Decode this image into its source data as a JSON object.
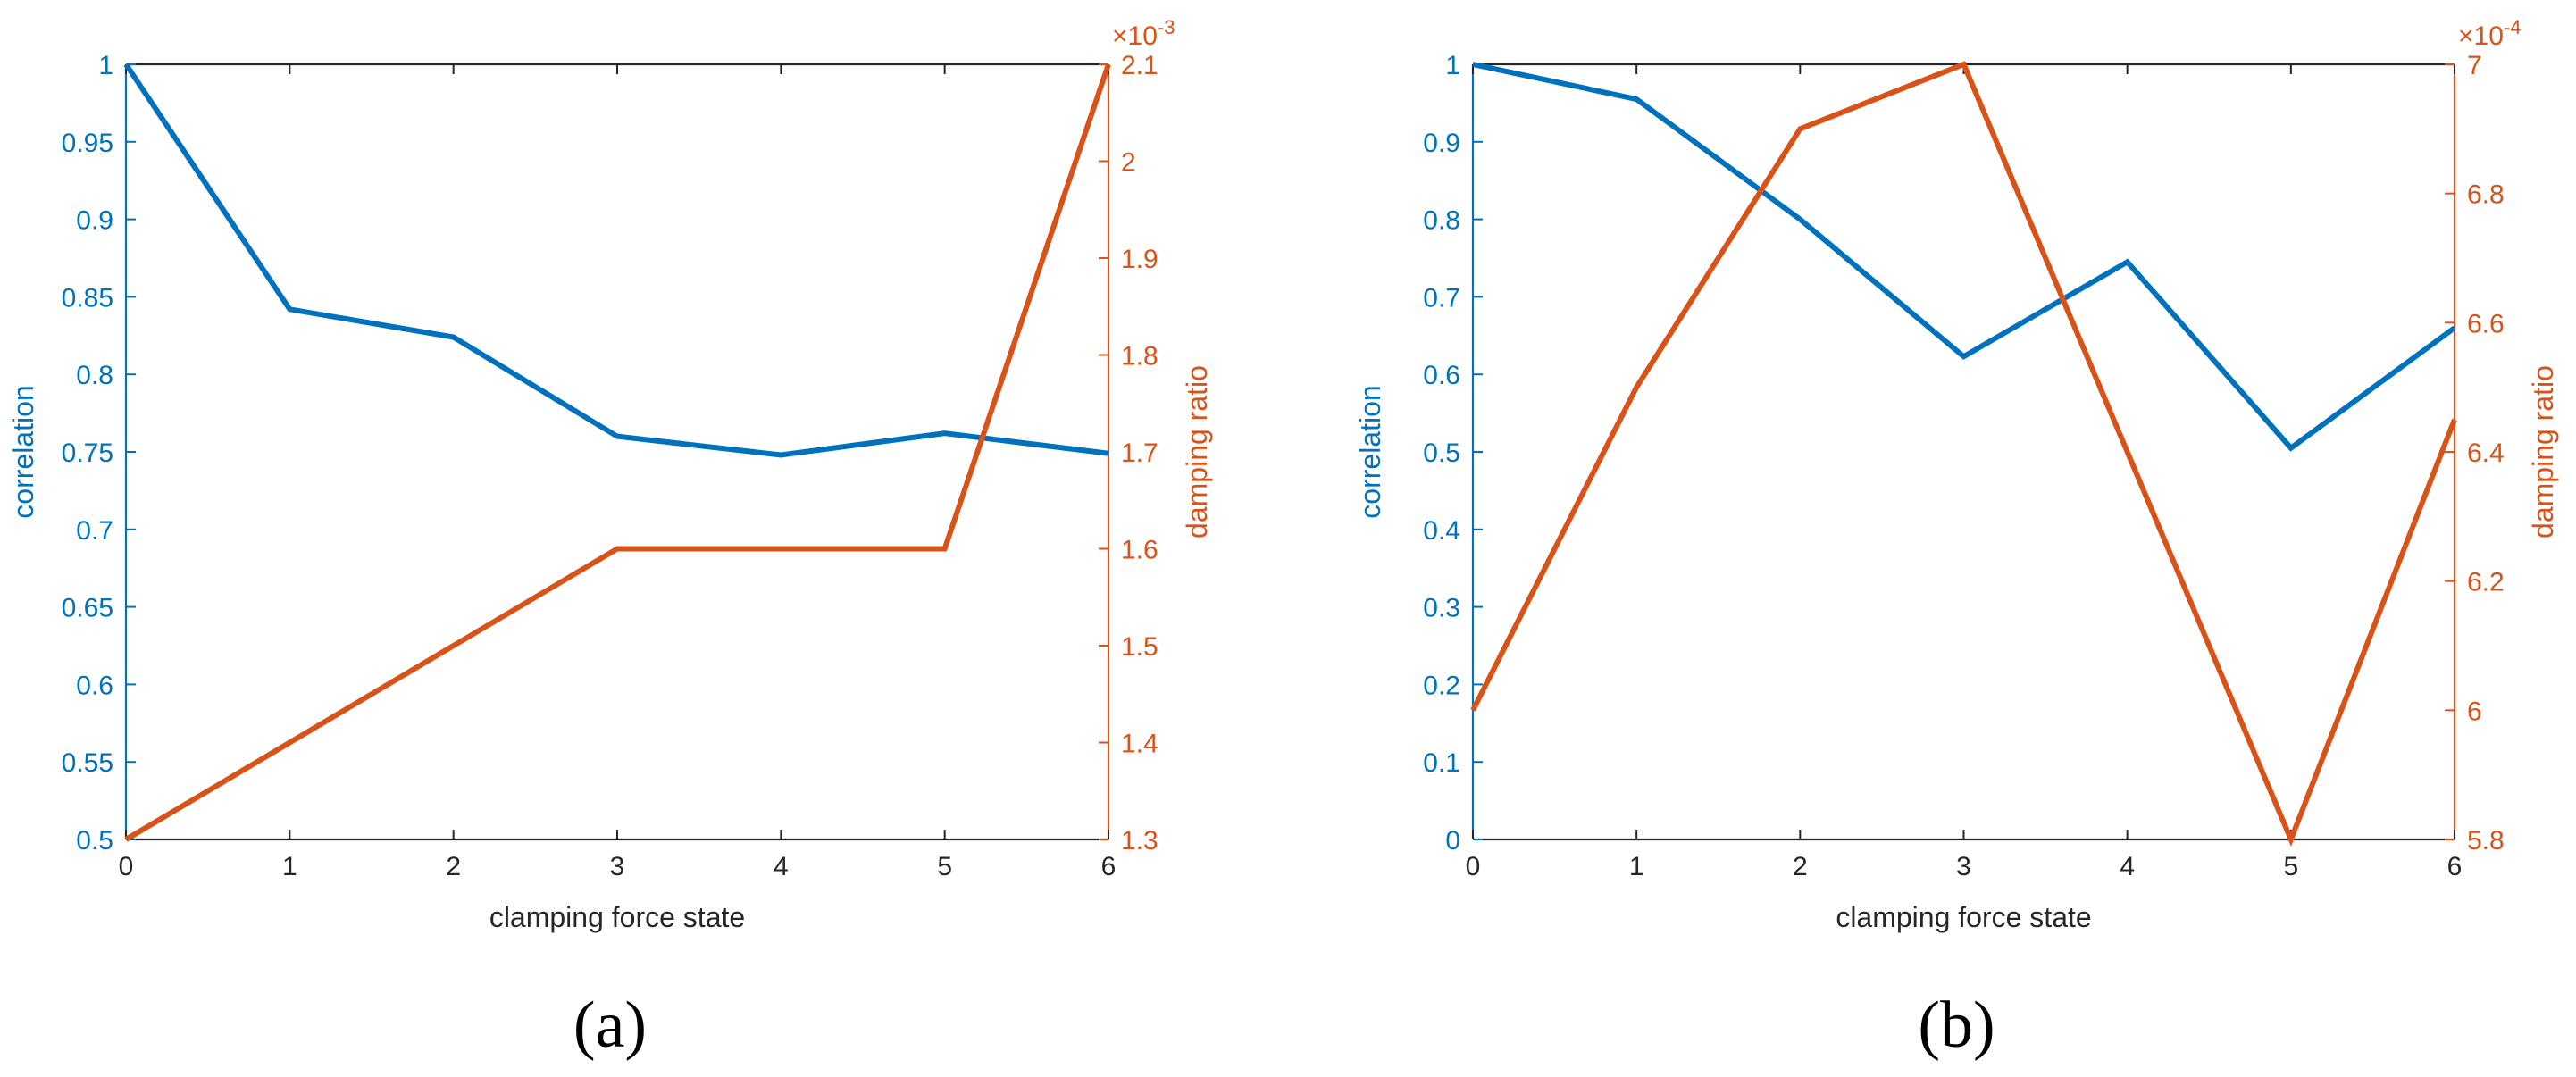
{
  "colors": {
    "left": "#0072BD",
    "right": "#D95319",
    "axis": "#262626"
  },
  "chart_data": [
    {
      "type": "line",
      "panel_label": "(a)",
      "xlabel": "clamping force state",
      "x": [
        0,
        1,
        2,
        3,
        4,
        5,
        6
      ],
      "xlim": [
        0,
        6
      ],
      "x_ticks": [
        "0",
        "1",
        "2",
        "3",
        "4",
        "5",
        "6"
      ],
      "y_left": {
        "label": "correlation",
        "lim": [
          0.5,
          1
        ],
        "ticks": [
          0.5,
          0.55,
          0.6,
          0.65,
          0.7,
          0.75,
          0.8,
          0.85,
          0.9,
          0.95,
          1
        ],
        "tick_labels": [
          "0.5",
          "0.55",
          "0.6",
          "0.65",
          "0.7",
          "0.75",
          "0.8",
          "0.85",
          "0.9",
          "0.95",
          "1"
        ],
        "values": [
          1.0,
          0.842,
          0.824,
          0.76,
          0.748,
          0.762,
          0.749
        ]
      },
      "y_right": {
        "label": "damping ratio",
        "exponent_base": "×10",
        "exponent_power": "-3",
        "lim": [
          1.3,
          2.1
        ],
        "ticks": [
          1.3,
          1.4,
          1.5,
          1.6,
          1.7,
          1.8,
          1.9,
          2.0,
          2.1
        ],
        "tick_labels": [
          "1.3",
          "1.4",
          "1.5",
          "1.6",
          "1.7",
          "1.8",
          "1.9",
          "2",
          "2.1"
        ],
        "values": [
          1.3,
          1.4,
          1.5,
          1.6,
          1.6,
          1.6,
          2.1
        ]
      },
      "grid": false
    },
    {
      "type": "line",
      "panel_label": "(b)",
      "xlabel": "clamping force state",
      "x": [
        0,
        1,
        2,
        3,
        4,
        5,
        6
      ],
      "xlim": [
        0,
        6
      ],
      "x_ticks": [
        "0",
        "1",
        "2",
        "3",
        "4",
        "5",
        "6"
      ],
      "y_left": {
        "label": "correlation",
        "lim": [
          0,
          1
        ],
        "ticks": [
          0,
          0.1,
          0.2,
          0.3,
          0.4,
          0.5,
          0.6,
          0.7,
          0.8,
          0.9,
          1
        ],
        "tick_labels": [
          "0",
          "0.1",
          "0.2",
          "0.3",
          "0.4",
          "0.5",
          "0.6",
          "0.7",
          "0.8",
          "0.9",
          "1"
        ],
        "values": [
          1.0,
          0.955,
          0.8,
          0.623,
          0.745,
          0.505,
          0.66
        ]
      },
      "y_right": {
        "label": "damping ratio",
        "exponent_base": "×10",
        "exponent_power": "-4",
        "lim": [
          5.8,
          7.0
        ],
        "ticks": [
          5.8,
          6.0,
          6.2,
          6.4,
          6.6,
          6.8,
          7.0
        ],
        "tick_labels": [
          "5.8",
          "6",
          "6.2",
          "6.4",
          "6.6",
          "6.8",
          "7"
        ],
        "values": [
          6.0,
          6.5,
          6.9,
          7.0,
          6.4,
          5.8,
          6.45
        ]
      },
      "grid": false
    }
  ]
}
